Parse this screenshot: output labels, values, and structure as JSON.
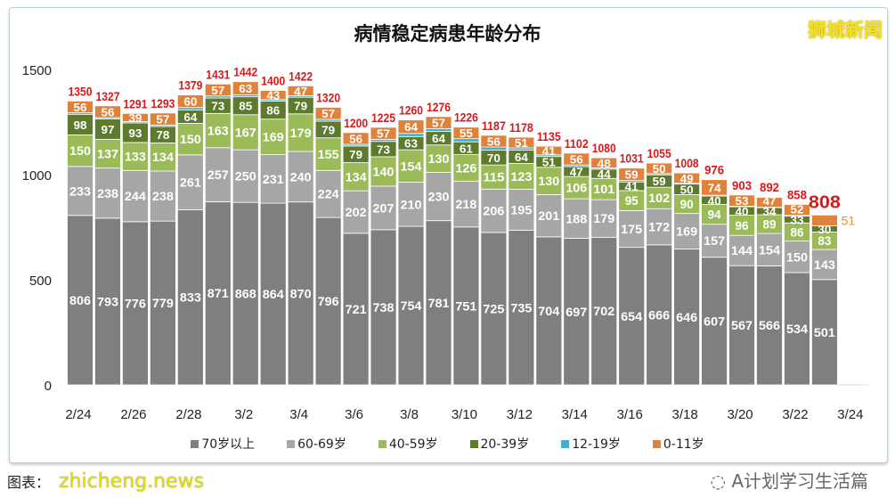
{
  "header": {
    "title": "病情稳定病患年龄分布",
    "brand": "狮城新闻"
  },
  "watermarks": {
    "site": "zhicheng.news",
    "source": "图表：",
    "wechat": "A计划学习生活篇"
  },
  "chart_data": {
    "type": "bar",
    "stacked": true,
    "title": "病情稳定病患年龄分布",
    "xlabel": "",
    "ylabel": "",
    "ylim": [
      0,
      1500
    ],
    "yticks": [
      0,
      500,
      1000,
      1500
    ],
    "xtick_labels": [
      "2/24",
      "2/26",
      "2/28",
      "3/2",
      "3/4",
      "3/6",
      "3/8",
      "3/10",
      "3/12",
      "3/14",
      "3/16",
      "3/18",
      "3/20",
      "3/22",
      "3/24"
    ],
    "grid": false,
    "legend": "bottom",
    "categories": [
      "2/24",
      "2/25",
      "2/26",
      "2/27",
      "2/28",
      "3/1",
      "3/2",
      "3/3",
      "3/4",
      "3/5",
      "3/6",
      "3/7",
      "3/8",
      "3/9",
      "3/10",
      "3/11",
      "3/12",
      "3/13",
      "3/14",
      "3/15",
      "3/16",
      "3/17",
      "3/18",
      "3/19",
      "3/20",
      "3/21",
      "3/22",
      "3/23"
    ],
    "series": [
      {
        "name": "70岁以上",
        "color": "#7f7f80",
        "values": [
          806,
          793,
          776,
          779,
          833,
          871,
          868,
          864,
          870,
          796,
          721,
          738,
          754,
          781,
          751,
          725,
          735,
          704,
          697,
          702,
          654,
          666,
          646,
          607,
          567,
          566,
          534,
          501
        ]
      },
      {
        "name": "60-69岁",
        "color": "#a6a6a6",
        "values": [
          233,
          238,
          244,
          238,
          261,
          257,
          250,
          231,
          240,
          224,
          202,
          207,
          210,
          230,
          218,
          206,
          195,
          201,
          188,
          179,
          175,
          172,
          169,
          157,
          144,
          154,
          150,
          143
        ]
      },
      {
        "name": "40-59岁",
        "color": "#9bbb59",
        "values": [
          150,
          137,
          133,
          134,
          150,
          163,
          167,
          169,
          179,
          155,
          134,
          140,
          154,
          130,
          126,
          115,
          123,
          130,
          106,
          101,
          95,
          102,
          90,
          94,
          96,
          89,
          86,
          83
        ]
      },
      {
        "name": "20-39岁",
        "color": "#5e7a2e",
        "values": [
          98,
          97,
          93,
          78,
          64,
          73,
          85,
          86,
          79,
          79,
          79,
          73,
          63,
          64,
          61,
          70,
          64,
          51,
          47,
          44,
          41,
          59,
          50,
          40,
          40,
          34,
          33,
          30
        ]
      },
      {
        "name": "12-19岁",
        "color": "#4bacc6",
        "values": [
          7,
          6,
          6,
          7,
          11,
          10,
          9,
          7,
          7,
          9,
          8,
          10,
          15,
          14,
          15,
          15,
          10,
          8,
          8,
          6,
          7,
          6,
          4,
          4,
          3,
          2,
          3,
          0
        ]
      },
      {
        "name": "0-11岁",
        "color": "#e0823a",
        "values": [
          56,
          56,
          39,
          57,
          60,
          57,
          63,
          43,
          47,
          57,
          56,
          57,
          64,
          57,
          55,
          56,
          51,
          41,
          56,
          48,
          59,
          50,
          49,
          74,
          53,
          47,
          52,
          51
        ]
      }
    ],
    "totals": [
      1350,
      1327,
      1291,
      1293,
      1379,
      1431,
      1442,
      1400,
      1422,
      1320,
      1200,
      1225,
      1260,
      1276,
      1226,
      1187,
      1178,
      1135,
      1102,
      1080,
      1031,
      1055,
      1008,
      976,
      903,
      892,
      858,
      808
    ],
    "total_color": "#d7191c"
  }
}
